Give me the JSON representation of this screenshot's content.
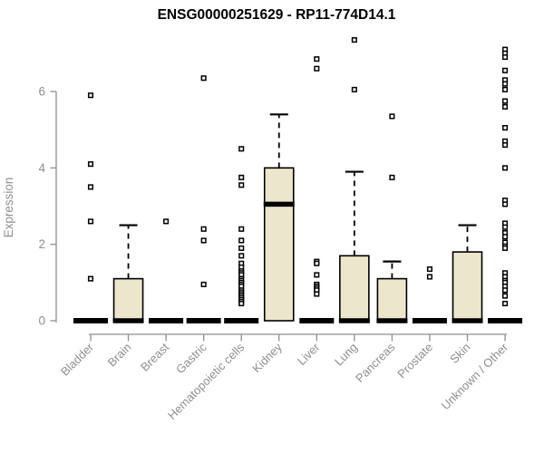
{
  "chart_data": {
    "type": "boxplot",
    "title": "ENSG00000251629 - RP11-774D14.1",
    "ylabel": "Expression",
    "xlabel": "",
    "ylim": [
      0,
      7.5
    ],
    "yticks": [
      0,
      2,
      4,
      6
    ],
    "grid": false,
    "legend": "none",
    "colors": {
      "box_fill": "#ece6cd",
      "box_stroke": "#000000",
      "median": "#000000",
      "axis": "#8f8f8f",
      "tick_label": "#8f8f8f",
      "outlier_fill": "#ffffff",
      "outlier_stroke": "#000000"
    },
    "categories": [
      "Bladder",
      "Brain",
      "Breast",
      "Gastric",
      "Hematopoietic cells",
      "Kidney",
      "Liver",
      "Lung",
      "Pancreas",
      "Prostate",
      "Skin",
      "Unknown / Other"
    ],
    "series": [
      {
        "name": "Bladder",
        "q1": 0,
        "median": 0,
        "q3": 0,
        "whisker_low": 0,
        "whisker_high": 0,
        "outliers": [
          5.9,
          4.1,
          3.5,
          2.6,
          1.1
        ]
      },
      {
        "name": "Brain",
        "q1": 0,
        "median": 0,
        "q3": 1.1,
        "whisker_low": 0,
        "whisker_high": 2.5,
        "outliers": []
      },
      {
        "name": "Breast",
        "q1": 0,
        "median": 0,
        "q3": 0,
        "whisker_low": 0,
        "whisker_high": 0,
        "outliers": [
          2.6
        ]
      },
      {
        "name": "Gastric",
        "q1": 0,
        "median": 0,
        "q3": 0,
        "whisker_low": 0,
        "whisker_high": 0,
        "outliers": [
          6.35,
          2.4,
          2.1,
          0.95
        ]
      },
      {
        "name": "Hematopoietic cells",
        "q1": 0,
        "median": 0,
        "q3": 0,
        "whisker_low": 0,
        "whisker_high": 0,
        "outliers": [
          4.5,
          3.75,
          3.55,
          2.4,
          2.1,
          1.9,
          1.7,
          1.5,
          1.4,
          1.3,
          1.25,
          1.2,
          1.1,
          1.05,
          1.0,
          0.95,
          0.9,
          0.8,
          0.75,
          0.7,
          0.65,
          0.6,
          0.55,
          0.5,
          0.45
        ]
      },
      {
        "name": "Kidney",
        "q1": 0,
        "median": 3.05,
        "q3": 4.0,
        "whisker_low": 0,
        "whisker_high": 5.4,
        "outliers": []
      },
      {
        "name": "Liver",
        "q1": 0,
        "median": 0,
        "q3": 0,
        "whisker_low": 0,
        "whisker_high": 0,
        "outliers": [
          6.85,
          6.6,
          1.55,
          1.5,
          1.2,
          0.95,
          0.9,
          0.85,
          0.8,
          0.7
        ]
      },
      {
        "name": "Lung",
        "q1": 0,
        "median": 0,
        "q3": 1.7,
        "whisker_low": 0,
        "whisker_high": 3.9,
        "outliers": [
          7.35,
          6.05
        ]
      },
      {
        "name": "Pancreas",
        "q1": 0,
        "median": 0,
        "q3": 1.1,
        "whisker_low": 0,
        "whisker_high": 1.55,
        "outliers": [
          5.35,
          3.75
        ]
      },
      {
        "name": "Prostate",
        "q1": 0,
        "median": 0,
        "q3": 0,
        "whisker_low": 0,
        "whisker_high": 0,
        "outliers": [
          1.35,
          1.15
        ]
      },
      {
        "name": "Skin",
        "q1": 0,
        "median": 0,
        "q3": 1.8,
        "whisker_low": 0,
        "whisker_high": 2.5,
        "outliers": []
      },
      {
        "name": "Unknown / Other",
        "q1": 0,
        "median": 0,
        "q3": 0,
        "whisker_low": 0,
        "whisker_high": 0,
        "outliers": [
          7.1,
          7.0,
          6.9,
          6.55,
          6.3,
          6.2,
          6.05,
          5.75,
          5.6,
          5.05,
          4.7,
          4.6,
          4.0,
          3.15,
          3.05,
          2.55,
          2.45,
          2.3,
          2.2,
          2.05,
          1.95,
          1.9,
          1.25,
          1.15,
          1.05,
          1.0,
          0.9,
          0.8,
          0.65,
          0.45
        ]
      }
    ]
  }
}
